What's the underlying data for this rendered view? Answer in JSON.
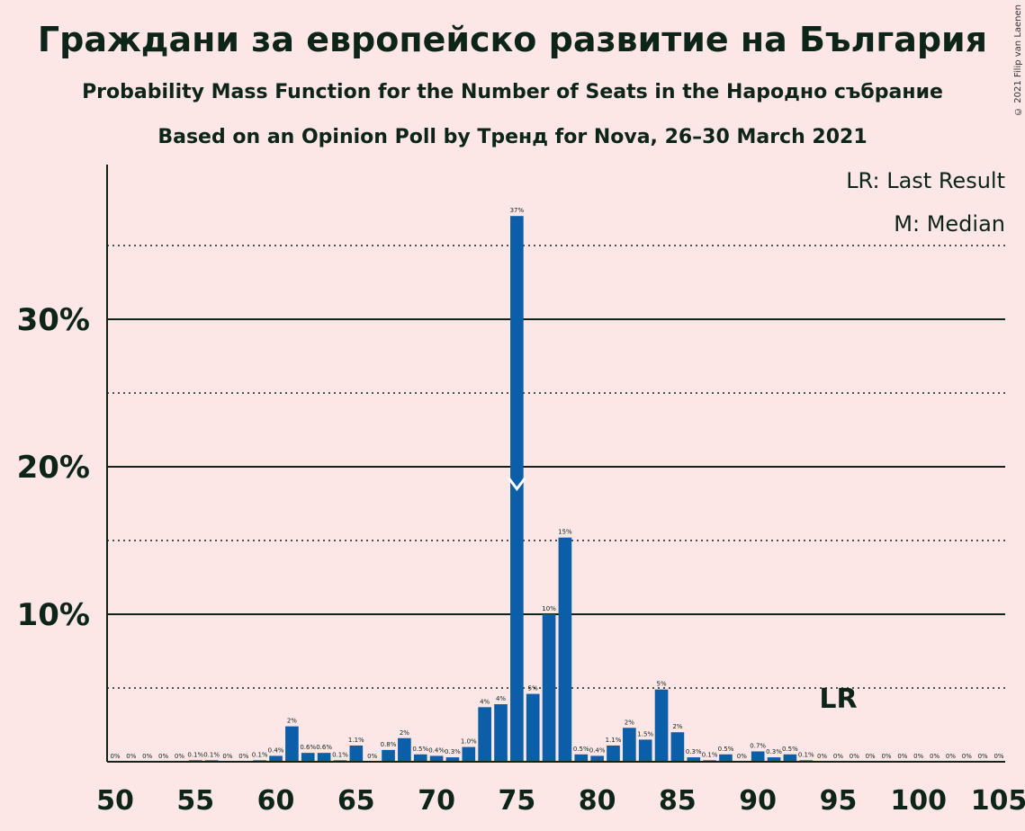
{
  "title": "Граждани за европейско развитие на България",
  "subtitle1": "Probability Mass Function for the Number of Seats in the Народно събрание",
  "subtitle2": "Based on an Opinion Poll by Тренд for Nova, 26–30 March 2021",
  "copyright": "© 2021 Filip van Laenen",
  "legend": {
    "lr": "LR: Last Result",
    "m": "M: Median"
  },
  "chart_data": {
    "type": "bar",
    "x": [
      50,
      51,
      52,
      53,
      54,
      55,
      56,
      57,
      58,
      59,
      60,
      61,
      62,
      63,
      64,
      65,
      66,
      67,
      68,
      69,
      70,
      71,
      72,
      73,
      74,
      75,
      76,
      77,
      78,
      79,
      80,
      81,
      82,
      83,
      84,
      85,
      86,
      87,
      88,
      89,
      90,
      91,
      92,
      93,
      94,
      95,
      96,
      97,
      98,
      99,
      100,
      101,
      102,
      103,
      104,
      105
    ],
    "values": [
      0,
      0,
      0,
      0,
      0,
      0.1,
      0.1,
      0,
      0,
      0.1,
      0.4,
      2.4,
      0.6,
      0.6,
      0.1,
      1.1,
      0,
      0.8,
      1.6,
      0.5,
      0.4,
      0.3,
      1.0,
      3.7,
      3.9,
      37,
      4.6,
      10,
      15.2,
      0.5,
      0.4,
      1.1,
      2.3,
      1.5,
      4.9,
      2.0,
      0.3,
      0.1,
      0.5,
      0,
      0.7,
      0.3,
      0.5,
      0.1,
      0,
      0,
      0,
      0,
      0,
      0,
      0,
      0,
      0,
      0,
      0,
      0
    ],
    "labels": [
      "0%",
      "0%",
      "0%",
      "0%",
      "0%",
      "0.1%",
      "0.1%",
      "0%",
      "0%",
      "0.1%",
      "0.4%",
      "2%",
      "0.6%",
      "0.6%",
      "0.1%",
      "1.1%",
      "0%",
      "0.8%",
      "2%",
      "0.5%",
      "0.4%",
      "0.3%",
      "1.0%",
      "4%",
      "4%",
      "37%",
      "5%",
      "10%",
      "15%",
      "0.5%",
      "0.4%",
      "1.1%",
      "2%",
      "1.5%",
      "5%",
      "2%",
      "0.3%",
      "0.1%",
      "0.5%",
      "0%",
      "0.7%",
      "0.3%",
      "0.5%",
      "0.1%",
      "0%",
      "0%",
      "0%",
      "0%",
      "0%",
      "0%",
      "0%",
      "0%",
      "0%",
      "0%",
      "0%",
      "0%"
    ],
    "label_every_other_from": 89,
    "xticks": [
      50,
      55,
      60,
      65,
      70,
      75,
      80,
      85,
      90,
      95,
      100,
      105
    ],
    "xtick_labels": [
      "50",
      "55",
      "60",
      "65",
      "70",
      "75",
      "80",
      "85",
      "90",
      "95",
      "100",
      "105"
    ],
    "yticks": [
      10,
      20,
      30
    ],
    "ytick_labels": [
      "10%",
      "20%",
      "30%"
    ],
    "minor_yticks": [
      5,
      15,
      25,
      35
    ],
    "ylim": [
      0,
      40
    ],
    "xlim": [
      50,
      105
    ],
    "median": 75,
    "last_result": 95,
    "last_result_label": "LR",
    "bar_color": "#0c5ea8",
    "grid": true,
    "legend_position": "top-right"
  }
}
